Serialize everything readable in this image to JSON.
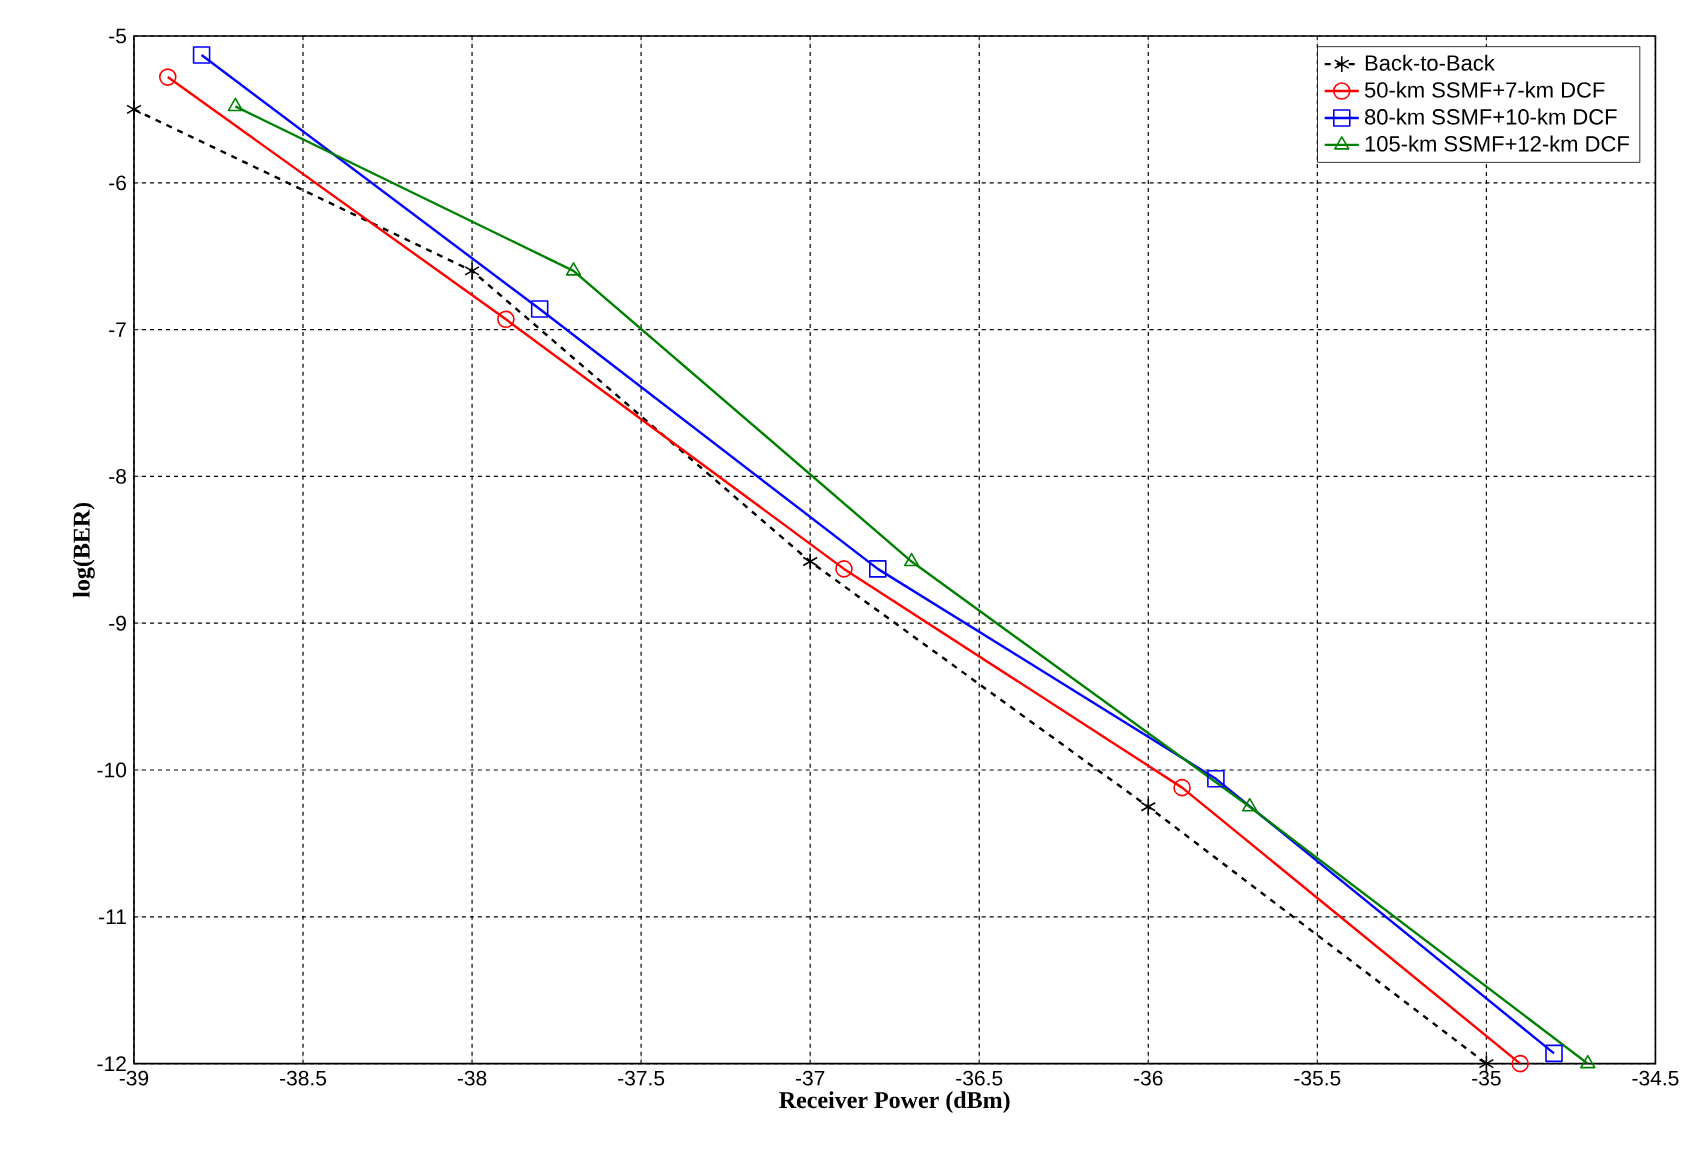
{
  "chart_data": {
    "type": "line",
    "xlabel": "Receiver Power (dBm)",
    "ylabel": "log(BER)",
    "xlim": [
      -39,
      -34.5
    ],
    "ylim": [
      -12,
      -5
    ],
    "xticks": [
      -39,
      -38.5,
      -38,
      -37.5,
      -37,
      -36.5,
      -36,
      -35.5,
      -35,
      -34.5
    ],
    "yticks": [
      -12,
      -11,
      -10,
      -9,
      -8,
      -7,
      -6,
      -5
    ],
    "grid": true,
    "legend": "top right",
    "series": [
      {
        "name": "Back-to-Back",
        "color": "#000000",
        "marker": "cross",
        "line_style": "dashed",
        "x": [
          -39,
          -38,
          -37,
          -36,
          -35
        ],
        "values": [
          -5.5,
          -6.6,
          -8.58,
          -10.25,
          -12
        ]
      },
      {
        "name": "50-km SSMF+7-km DCF",
        "color": "#ff0000",
        "marker": "circle",
        "line_style": "solid",
        "x": [
          -38.9,
          -37.9,
          -36.9,
          -35.9,
          -34.9
        ],
        "values": [
          -5.28,
          -6.93,
          -8.63,
          -10.12,
          -12
        ]
      },
      {
        "name": "80-km SSMF+10-km DCF",
        "color": "#0000ff",
        "marker": "square",
        "line_style": "solid",
        "x": [
          -38.8,
          -37.8,
          -36.8,
          -35.8,
          -34.8
        ],
        "values": [
          -5.13,
          -6.86,
          -8.63,
          -10.06,
          -11.93
        ]
      },
      {
        "name": "105-km SSMF+12-km DCF",
        "color": "#008000",
        "marker": "triangle",
        "line_style": "solid",
        "x": [
          -38.7,
          -37.7,
          -36.7,
          -35.7,
          -34.7
        ],
        "values": [
          -5.48,
          -6.6,
          -8.58,
          -10.25,
          -12
        ]
      }
    ]
  }
}
